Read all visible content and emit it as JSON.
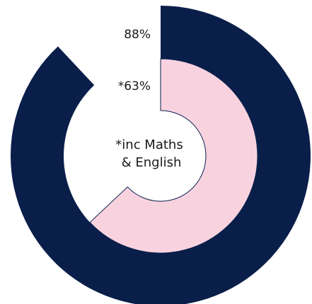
{
  "chart_data": {
    "type": "pie",
    "subtype": "nested-donut",
    "series": [
      {
        "value_label": "88%",
        "value": 88,
        "color": "#0a1e4a"
      },
      {
        "value_label": "*63%",
        "value": 63,
        "color": "#f8d3df"
      }
    ],
    "center_text": [
      "*inc Maths",
      "& English"
    ],
    "start_angle_deg": 0,
    "direction": "clockwise"
  }
}
